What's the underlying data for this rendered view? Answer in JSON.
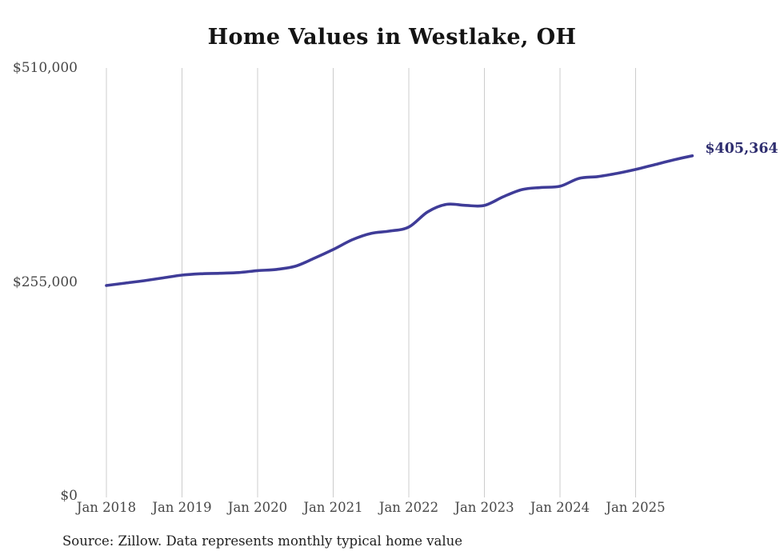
{
  "page": {
    "background": "#ffffff"
  },
  "source": {
    "text": "Source: Zillow. Data represents monthly typical home value"
  },
  "chart_data": {
    "type": "line",
    "title": "Home Values in Westlake, OH",
    "xlabel": "",
    "ylabel": "",
    "ylim": [
      0,
      510000
    ],
    "grid": "vertical-only",
    "legend": "none",
    "line_color": "#3f3c98",
    "grid_color": "#cccccc",
    "axis_label_color": "#474747",
    "end_label": "$405,364",
    "end_label_color": "#2e2d6f",
    "end_value": 405364,
    "y_ticks": [
      {
        "value": 0,
        "label": "$0"
      },
      {
        "value": 255000,
        "label": "$255,000"
      },
      {
        "value": 510000,
        "label": "$510,000"
      }
    ],
    "x_ticks": [
      {
        "month": "2018-01",
        "label": "Jan 2018"
      },
      {
        "month": "2019-01",
        "label": "Jan 2019"
      },
      {
        "month": "2020-01",
        "label": "Jan 2020"
      },
      {
        "month": "2021-01",
        "label": "Jan 2021"
      },
      {
        "month": "2022-01",
        "label": "Jan 2022"
      },
      {
        "month": "2023-01",
        "label": "Jan 2023"
      },
      {
        "month": "2024-01",
        "label": "Jan 2024"
      },
      {
        "month": "2025-01",
        "label": "Jan 2025"
      }
    ],
    "series": [
      {
        "name": "Monthly typical home value",
        "points": [
          {
            "date": "2018-01",
            "value": 250700
          },
          {
            "date": "2018-04",
            "value": 253600
          },
          {
            "date": "2018-07",
            "value": 256400
          },
          {
            "date": "2018-10",
            "value": 259800
          },
          {
            "date": "2019-01",
            "value": 263100
          },
          {
            "date": "2019-04",
            "value": 264700
          },
          {
            "date": "2019-07",
            "value": 265300
          },
          {
            "date": "2019-10",
            "value": 266200
          },
          {
            "date": "2020-01",
            "value": 268400
          },
          {
            "date": "2020-04",
            "value": 269900
          },
          {
            "date": "2020-07",
            "value": 273700
          },
          {
            "date": "2020-10",
            "value": 283200
          },
          {
            "date": "2021-01",
            "value": 293600
          },
          {
            "date": "2021-04",
            "value": 305100
          },
          {
            "date": "2021-07",
            "value": 312800
          },
          {
            "date": "2021-10",
            "value": 315600
          },
          {
            "date": "2022-01",
            "value": 320400
          },
          {
            "date": "2022-04",
            "value": 338500
          },
          {
            "date": "2022-07",
            "value": 347500
          },
          {
            "date": "2022-10",
            "value": 346200
          },
          {
            "date": "2023-01",
            "value": 346100
          },
          {
            "date": "2023-04",
            "value": 356500
          },
          {
            "date": "2023-07",
            "value": 365100
          },
          {
            "date": "2023-10",
            "value": 367600
          },
          {
            "date": "2024-01",
            "value": 369000
          },
          {
            "date": "2024-04",
            "value": 378400
          },
          {
            "date": "2024-07",
            "value": 380500
          },
          {
            "date": "2024-10",
            "value": 384300
          },
          {
            "date": "2025-01",
            "value": 389000
          },
          {
            "date": "2025-04",
            "value": 394700
          },
          {
            "date": "2025-07",
            "value": 400400
          },
          {
            "date": "2025-10",
            "value": 405364
          }
        ]
      }
    ]
  }
}
